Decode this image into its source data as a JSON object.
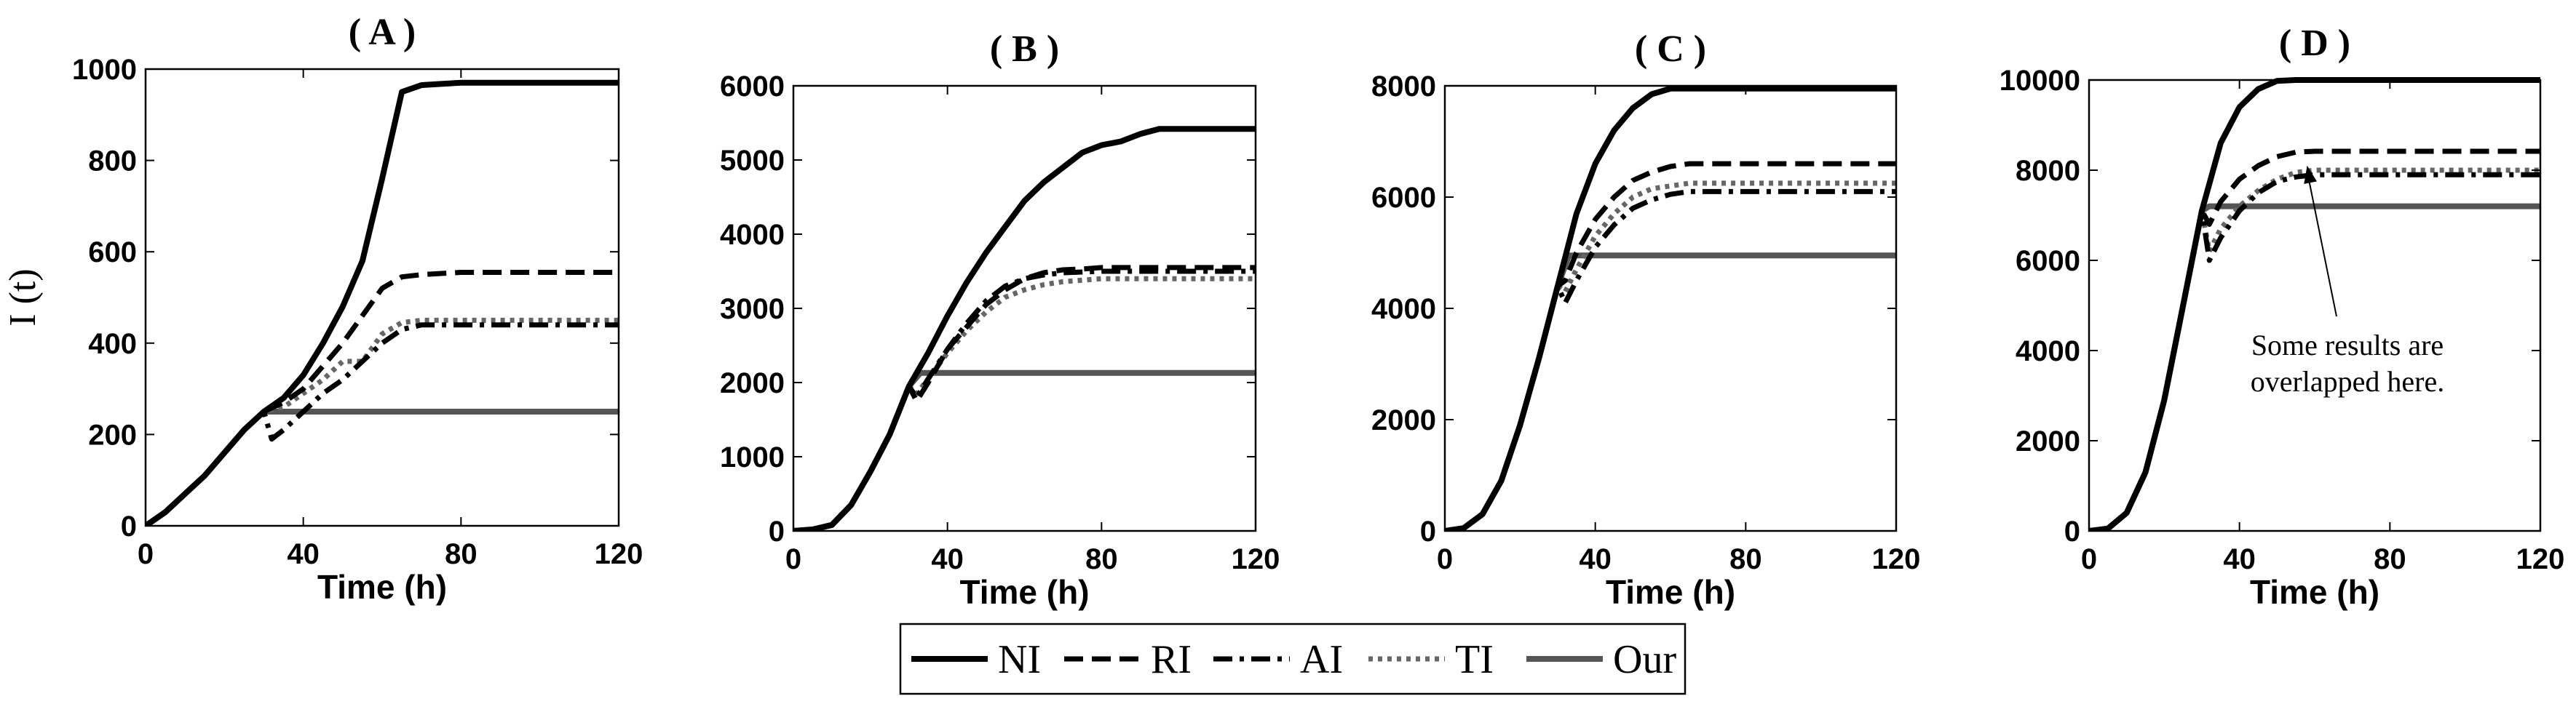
{
  "chart_data": [
    {
      "type": "line",
      "title": "( A )",
      "xlabel": "Time (h)",
      "ylabel": "I (t)",
      "xlim": [
        0,
        120
      ],
      "ylim": [
        0,
        1000
      ],
      "xticks": [
        0,
        40,
        80,
        120
      ],
      "yticks": [
        0,
        200,
        400,
        600,
        800,
        1000
      ],
      "series": [
        {
          "name": "NI",
          "x": [
            0,
            5,
            10,
            15,
            20,
            25,
            30,
            35,
            40,
            45,
            50,
            55,
            60,
            65,
            70,
            80,
            90,
            100,
            110,
            120
          ],
          "y": [
            0,
            30,
            70,
            110,
            160,
            210,
            250,
            280,
            330,
            400,
            480,
            580,
            760,
            950,
            965,
            970,
            970,
            970,
            970,
            970
          ]
        },
        {
          "name": "RI",
          "x": [
            0,
            5,
            10,
            15,
            20,
            25,
            30,
            35,
            40,
            45,
            50,
            55,
            60,
            65,
            70,
            80,
            90,
            100,
            110,
            120
          ],
          "y": [
            0,
            30,
            70,
            110,
            160,
            210,
            250,
            270,
            300,
            350,
            400,
            460,
            520,
            545,
            550,
            555,
            555,
            555,
            555,
            555
          ]
        },
        {
          "name": "AI",
          "x": [
            0,
            5,
            10,
            15,
            20,
            25,
            30,
            32,
            35,
            40,
            45,
            50,
            55,
            60,
            65,
            70,
            80,
            90,
            100,
            110,
            120
          ],
          "y": [
            0,
            30,
            70,
            110,
            160,
            210,
            250,
            190,
            210,
            250,
            290,
            320,
            360,
            400,
            430,
            440,
            440,
            440,
            440,
            440,
            440
          ]
        },
        {
          "name": "TI",
          "x": [
            0,
            5,
            10,
            15,
            20,
            25,
            30,
            35,
            40,
            45,
            50,
            55,
            60,
            65,
            70,
            80,
            90,
            100,
            110,
            120
          ],
          "y": [
            0,
            30,
            70,
            110,
            160,
            210,
            250,
            260,
            290,
            320,
            360,
            360,
            420,
            445,
            450,
            450,
            450,
            450,
            450,
            450
          ]
        },
        {
          "name": "Our",
          "x": [
            0,
            5,
            10,
            15,
            20,
            25,
            30,
            35,
            40,
            60,
            80,
            100,
            120
          ],
          "y": [
            0,
            30,
            70,
            110,
            160,
            210,
            250,
            250,
            250,
            250,
            250,
            250,
            250
          ]
        }
      ]
    },
    {
      "type": "line",
      "title": "( B )",
      "xlabel": "Time (h)",
      "ylabel": "",
      "xlim": [
        0,
        120
      ],
      "ylim": [
        0,
        6000
      ],
      "xticks": [
        0,
        40,
        80,
        120
      ],
      "yticks": [
        0,
        1000,
        2000,
        3000,
        4000,
        5000,
        6000
      ],
      "series": [
        {
          "name": "NI",
          "x": [
            0,
            5,
            10,
            15,
            20,
            25,
            30,
            35,
            40,
            45,
            50,
            55,
            60,
            65,
            70,
            75,
            80,
            85,
            90,
            95,
            100,
            110,
            120
          ],
          "y": [
            0,
            20,
            80,
            350,
            800,
            1300,
            1950,
            2400,
            2900,
            3350,
            3750,
            4100,
            4450,
            4700,
            4900,
            5100,
            5200,
            5250,
            5350,
            5420,
            5420,
            5420,
            5420
          ]
        },
        {
          "name": "RI",
          "x": [
            0,
            5,
            10,
            15,
            20,
            25,
            30,
            32,
            35,
            40,
            45,
            50,
            55,
            60,
            65,
            70,
            75,
            80,
            90,
            100,
            110,
            120
          ],
          "y": [
            0,
            20,
            80,
            350,
            800,
            1300,
            1950,
            1750,
            2000,
            2450,
            2750,
            3050,
            3250,
            3400,
            3480,
            3520,
            3530,
            3550,
            3550,
            3550,
            3550,
            3550
          ]
        },
        {
          "name": "AI",
          "x": [
            0,
            5,
            10,
            15,
            20,
            25,
            30,
            32,
            35,
            40,
            45,
            50,
            55,
            60,
            65,
            70,
            75,
            80,
            90,
            100,
            110,
            120
          ],
          "y": [
            0,
            20,
            80,
            350,
            800,
            1300,
            1950,
            1800,
            2050,
            2450,
            2800,
            3100,
            3300,
            3400,
            3450,
            3480,
            3490,
            3500,
            3500,
            3500,
            3500,
            3500
          ]
        },
        {
          "name": "TI",
          "x": [
            0,
            5,
            10,
            15,
            20,
            25,
            30,
            32,
            35,
            40,
            45,
            50,
            55,
            60,
            65,
            70,
            75,
            80,
            90,
            100,
            110,
            120
          ],
          "y": [
            0,
            20,
            80,
            350,
            800,
            1300,
            1950,
            1850,
            2050,
            2400,
            2700,
            2950,
            3150,
            3250,
            3320,
            3360,
            3380,
            3400,
            3400,
            3400,
            3400,
            3400
          ]
        },
        {
          "name": "Our",
          "x": [
            0,
            5,
            10,
            15,
            20,
            25,
            30,
            33,
            40,
            60,
            80,
            100,
            120
          ],
          "y": [
            0,
            20,
            80,
            350,
            800,
            1300,
            1950,
            2130,
            2130,
            2130,
            2130,
            2130,
            2130
          ]
        }
      ]
    },
    {
      "type": "line",
      "title": "( C )",
      "xlabel": "Time (h)",
      "ylabel": "",
      "xlim": [
        0,
        120
      ],
      "ylim": [
        0,
        8000
      ],
      "xticks": [
        0,
        40,
        80,
        120
      ],
      "yticks": [
        0,
        2000,
        4000,
        6000,
        8000
      ],
      "series": [
        {
          "name": "NI",
          "x": [
            0,
            5,
            10,
            15,
            20,
            25,
            30,
            35,
            40,
            45,
            50,
            55,
            60,
            65,
            70,
            80,
            90,
            100,
            110,
            120
          ],
          "y": [
            0,
            50,
            300,
            900,
            1900,
            3100,
            4400,
            5700,
            6600,
            7200,
            7600,
            7850,
            7950,
            7950,
            7950,
            7950,
            7950,
            7950,
            7950,
            7950
          ]
        },
        {
          "name": "RI",
          "x": [
            0,
            5,
            10,
            15,
            20,
            25,
            30,
            32,
            35,
            40,
            45,
            50,
            55,
            60,
            65,
            70,
            80,
            90,
            100,
            110,
            120
          ],
          "y": [
            0,
            50,
            300,
            900,
            1900,
            3100,
            4400,
            4500,
            5000,
            5600,
            6000,
            6300,
            6450,
            6550,
            6600,
            6600,
            6600,
            6600,
            6600,
            6600,
            6600
          ]
        },
        {
          "name": "AI",
          "x": [
            0,
            5,
            10,
            15,
            20,
            25,
            30,
            32,
            35,
            40,
            45,
            50,
            55,
            60,
            65,
            70,
            80,
            90,
            100,
            110,
            120
          ],
          "y": [
            0,
            50,
            300,
            900,
            1900,
            3100,
            4400,
            4100,
            4500,
            5100,
            5500,
            5800,
            5950,
            6050,
            6100,
            6100,
            6100,
            6100,
            6100,
            6100,
            6100
          ]
        },
        {
          "name": "TI",
          "x": [
            0,
            5,
            10,
            15,
            20,
            25,
            30,
            32,
            35,
            40,
            45,
            50,
            55,
            60,
            65,
            70,
            80,
            90,
            100,
            110,
            120
          ],
          "y": [
            0,
            50,
            300,
            900,
            1900,
            3100,
            4400,
            4300,
            4700,
            5300,
            5700,
            6000,
            6150,
            6200,
            6250,
            6250,
            6250,
            6250,
            6250,
            6250,
            6250
          ]
        },
        {
          "name": "Our",
          "x": [
            0,
            5,
            10,
            15,
            20,
            25,
            30,
            33,
            40,
            60,
            80,
            100,
            120
          ],
          "y": [
            0,
            50,
            300,
            900,
            1900,
            3100,
            4400,
            4950,
            4950,
            4950,
            4950,
            4950,
            4950
          ]
        }
      ]
    },
    {
      "type": "line",
      "title": "( D )",
      "xlabel": "Time (h)",
      "ylabel": "",
      "xlim": [
        0,
        120
      ],
      "ylim": [
        0,
        10000
      ],
      "xticks": [
        0,
        40,
        80,
        120
      ],
      "yticks": [
        0,
        2000,
        4000,
        6000,
        8000,
        10000
      ],
      "annotation": "Some results are overlapped here.",
      "series": [
        {
          "name": "NI",
          "x": [
            0,
            5,
            10,
            15,
            20,
            25,
            30,
            35,
            40,
            45,
            50,
            55,
            60,
            70,
            80,
            90,
            100,
            110,
            120
          ],
          "y": [
            0,
            50,
            400,
            1300,
            2900,
            5000,
            7100,
            8600,
            9400,
            9800,
            9980,
            10000,
            10000,
            10000,
            10000,
            10000,
            10000,
            10000,
            10000
          ]
        },
        {
          "name": "RI",
          "x": [
            0,
            5,
            10,
            15,
            20,
            25,
            30,
            32,
            35,
            40,
            45,
            50,
            55,
            60,
            70,
            80,
            90,
            100,
            110,
            120
          ],
          "y": [
            0,
            50,
            400,
            1300,
            2900,
            5000,
            7100,
            6800,
            7300,
            7800,
            8100,
            8300,
            8400,
            8420,
            8420,
            8420,
            8420,
            8420,
            8420,
            8420
          ]
        },
        {
          "name": "AI",
          "x": [
            0,
            5,
            10,
            15,
            20,
            25,
            30,
            32,
            35,
            40,
            45,
            50,
            55,
            60,
            70,
            80,
            90,
            100,
            110,
            120
          ],
          "y": [
            0,
            50,
            400,
            1300,
            2900,
            5000,
            7100,
            6000,
            6500,
            7100,
            7500,
            7750,
            7850,
            7900,
            7900,
            7900,
            7900,
            7900,
            7900,
            7900
          ]
        },
        {
          "name": "TI",
          "x": [
            0,
            5,
            10,
            15,
            20,
            25,
            30,
            32,
            35,
            40,
            45,
            50,
            55,
            60,
            70,
            80,
            90,
            100,
            110,
            120
          ],
          "y": [
            0,
            50,
            400,
            1300,
            2900,
            5000,
            7100,
            6200,
            6700,
            7200,
            7550,
            7800,
            7950,
            8000,
            8000,
            8000,
            8000,
            8000,
            8000,
            8000
          ]
        },
        {
          "name": "Our",
          "x": [
            0,
            5,
            10,
            15,
            20,
            25,
            30,
            32,
            40,
            60,
            80,
            100,
            120
          ],
          "y": [
            0,
            50,
            400,
            1300,
            2900,
            5000,
            7100,
            7200,
            7200,
            7200,
            7200,
            7200,
            7200
          ]
        }
      ]
    }
  ],
  "legend": {
    "entries": [
      {
        "label": "NI",
        "style": "solid",
        "color": "#000000"
      },
      {
        "label": "RI",
        "style": "dashed",
        "color": "#000000"
      },
      {
        "label": "AI",
        "style": "dashdot",
        "color": "#000000"
      },
      {
        "label": "TI",
        "style": "dotted",
        "color": "#555555"
      },
      {
        "label": "Our",
        "style": "solid",
        "color": "#555555"
      }
    ]
  }
}
